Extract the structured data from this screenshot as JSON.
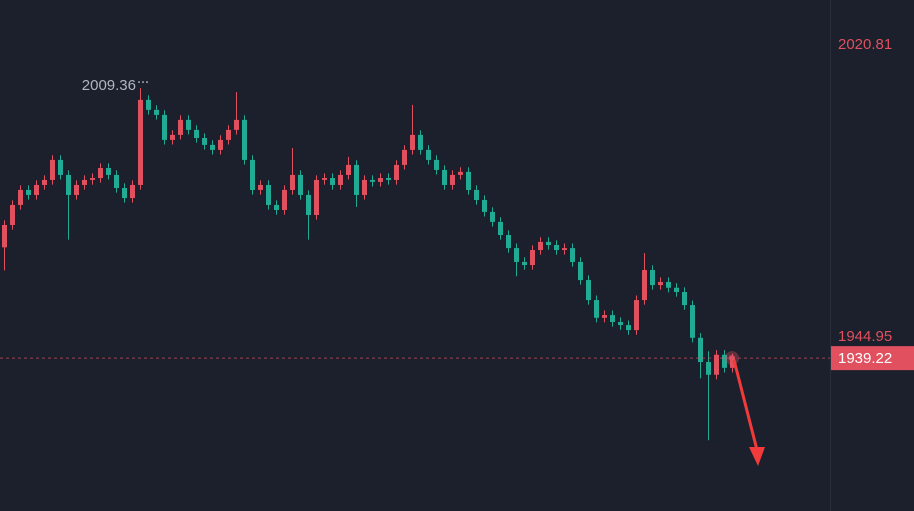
{
  "chart_data": {
    "type": "candlestick",
    "background": "#1b202c",
    "up_color": "#e0505e",
    "down_color": "#22ab94",
    "axis_label_color": "#e0505e",
    "grid": false,
    "ylim": [
      1899.51,
      2032.24
    ],
    "yticks": [
      1944.95,
      2020.81
    ],
    "high_annotation_index": 17,
    "open": [
      1968.0,
      1973.8,
      1979.0,
      1982.9,
      1981.6,
      1984.2,
      1985.5,
      1990.7,
      1986.8,
      1981.6,
      1984.2,
      1985.5,
      1986.0,
      1988.6,
      1986.8,
      1983.4,
      1980.8,
      1984.2,
      2006.3,
      2003.7,
      2002.4,
      1995.9,
      1997.2,
      2001.1,
      1998.5,
      1996.4,
      1994.6,
      1993.3,
      1995.9,
      1998.5,
      2001.1,
      1990.7,
      1982.9,
      1984.2,
      1979.0,
      1977.7,
      1982.9,
      1986.8,
      1981.6,
      1976.4,
      1985.5,
      1986.0,
      1984.2,
      1986.8,
      1989.4,
      1981.6,
      1985.5,
      1985.0,
      1986.0,
      1985.5,
      1989.4,
      1993.3,
      1997.2,
      1993.3,
      1990.7,
      1988.1,
      1984.2,
      1986.8,
      1987.6,
      1982.9,
      1980.3,
      1977.2,
      1974.6,
      1971.2,
      1967.8,
      1964.2,
      1963.4,
      1967.3,
      1969.4,
      1968.6,
      1967.3,
      1967.8,
      1964.2,
      1959.5,
      1954.3,
      1949.7,
      1950.4,
      1948.6,
      1947.8,
      1946.5,
      1954.3,
      1962.1,
      1958.2,
      1959.0,
      1957.5,
      1956.4,
      1953.0,
      1944.5,
      1938.2,
      1934.9,
      1940.1,
      1936.7
    ],
    "high": [
      1975.0,
      1980.2,
      1984.1,
      1984.1,
      1985.4,
      1986.7,
      1991.9,
      1991.9,
      1988.0,
      1985.4,
      1986.7,
      1987.2,
      1989.8,
      1989.8,
      1988.0,
      1984.6,
      1985.4,
      2009.36,
      2007.5,
      2004.9,
      2003.6,
      1998.4,
      2002.3,
      2002.3,
      1999.7,
      1997.6,
      1995.8,
      1997.1,
      1999.7,
      2008.3,
      2002.3,
      1991.9,
      1985.4,
      1985.4,
      1980.2,
      1984.1,
      1993.8,
      1988.0,
      1982.8,
      1986.7,
      1987.2,
      1987.2,
      1988.0,
      1991.5,
      1990.6,
      1986.7,
      1986.7,
      1987.2,
      1987.2,
      1990.6,
      1994.5,
      2005.0,
      1998.4,
      1994.5,
      1991.9,
      1989.3,
      1988.0,
      1988.8,
      1988.8,
      1984.1,
      1981.5,
      1978.4,
      1975.8,
      1972.4,
      1969.0,
      1965.4,
      1968.5,
      1970.6,
      1970.6,
      1969.8,
      1969.0,
      1969.0,
      1965.4,
      1960.7,
      1955.5,
      1951.6,
      1951.6,
      1949.8,
      1949.0,
      1955.5,
      1966.5,
      1963.3,
      1960.2,
      1960.2,
      1958.7,
      1957.6,
      1954.2,
      1945.7,
      1941.0,
      1941.3,
      1941.3,
      1940.4
    ],
    "low": [
      1962.0,
      1972.6,
      1977.8,
      1980.4,
      1980.4,
      1983.0,
      1984.3,
      1985.6,
      1970.0,
      1980.4,
      1983.0,
      1984.3,
      1984.8,
      1985.6,
      1982.2,
      1979.6,
      1979.6,
      1983.0,
      2002.5,
      2001.2,
      1994.7,
      1994.7,
      1996.0,
      1997.3,
      1995.2,
      1993.4,
      1992.1,
      1992.1,
      1994.7,
      1997.3,
      1989.5,
      1981.7,
      1981.7,
      1977.8,
      1976.5,
      1976.5,
      1981.7,
      1980.4,
      1970.0,
      1975.2,
      1984.3,
      1983.0,
      1983.0,
      1985.6,
      1978.5,
      1980.4,
      1983.8,
      1983.8,
      1984.3,
      1984.3,
      1988.2,
      1992.1,
      1992.1,
      1989.5,
      1986.9,
      1983.0,
      1983.0,
      1985.6,
      1981.7,
      1979.1,
      1976.0,
      1973.4,
      1970.0,
      1966.6,
      1960.5,
      1962.2,
      1962.2,
      1966.1,
      1967.4,
      1966.1,
      1966.1,
      1963.0,
      1958.3,
      1953.1,
      1948.5,
      1948.5,
      1947.4,
      1946.6,
      1945.3,
      1945.3,
      1953.1,
      1957.0,
      1957.0,
      1956.3,
      1955.2,
      1951.8,
      1943.3,
      1934.0,
      1917.9,
      1933.7,
      1935.5,
      1935.5
    ],
    "close": [
      1973.8,
      1979.0,
      1982.9,
      1981.6,
      1984.2,
      1985.5,
      1990.7,
      1986.8,
      1981.6,
      1984.2,
      1985.5,
      1986.0,
      1988.6,
      1986.8,
      1983.4,
      1980.8,
      1984.2,
      2006.3,
      2003.7,
      2002.4,
      1995.9,
      1997.2,
      2001.1,
      1998.5,
      1996.4,
      1994.6,
      1993.3,
      1995.9,
      1998.5,
      2001.1,
      1990.7,
      1982.9,
      1984.2,
      1979.0,
      1977.7,
      1982.9,
      1986.8,
      1981.6,
      1976.4,
      1985.5,
      1986.0,
      1984.2,
      1986.8,
      1989.4,
      1981.6,
      1985.5,
      1985.0,
      1986.0,
      1985.5,
      1989.4,
      1993.3,
      1997.2,
      1993.3,
      1990.7,
      1988.1,
      1984.2,
      1986.8,
      1987.6,
      1982.9,
      1980.3,
      1977.2,
      1974.6,
      1971.2,
      1967.8,
      1964.2,
      1963.4,
      1967.3,
      1969.4,
      1968.6,
      1967.3,
      1967.8,
      1964.2,
      1959.5,
      1954.3,
      1949.7,
      1950.4,
      1948.6,
      1947.8,
      1946.5,
      1954.3,
      1962.1,
      1958.2,
      1959.0,
      1957.5,
      1956.4,
      1953.0,
      1944.5,
      1938.2,
      1934.9,
      1940.1,
      1936.7,
      1939.22
    ]
  }
}
